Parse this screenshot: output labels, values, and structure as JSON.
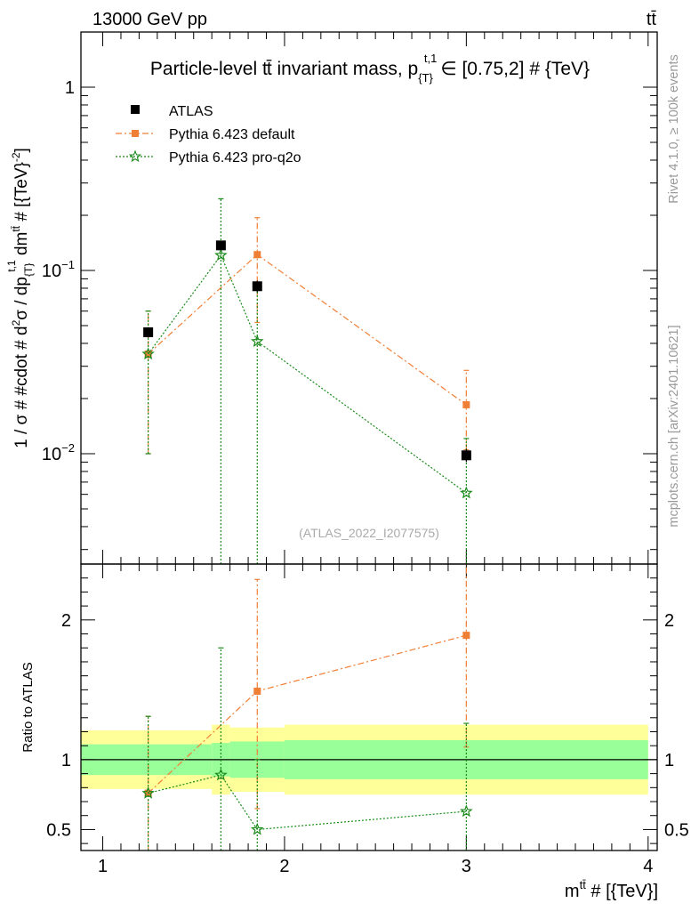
{
  "header": {
    "energy_label": "13000 GeV pp",
    "process_label": "tt̄",
    "side_label_top": "Rivet 4.1.0, ≥ 100k events",
    "side_label_bottom": "mcplots.cern.ch [arXiv:2401.10621]",
    "analysis_id": "(ATLAS_2022_I2077575)"
  },
  "chart_data": {
    "type": "scatter",
    "title": "Particle-level tt̄ invariant mass, p_{T}^{t,1} ∈ [0.75,2] # {TeV}",
    "title_parts": {
      "main": "Particle-level t",
      "tbar": "t̄",
      "mid": " invariant mass, p",
      "sub": "{T}",
      "sup": "t,1",
      "range": "∈ [0.75,2] # {TeV}"
    },
    "xlabel": "m^{tt̄} # [{TeV}]",
    "xlabel_parts": {
      "base": "m",
      "sup": "tt̄",
      "rest": " # [{TeV}]"
    },
    "ylabel": "1 / σ # #cdot # d²σ / dp_{T}^{t,1} dm^{tt̄} # [{TeV}^{-2}]",
    "ylabel_parts": {
      "a": "1 / σ # #cdot # d",
      "a_sup": "2",
      "b": "σ / dp",
      "b_sub": "{T}",
      "b_sup": "t,1",
      "c": " dm",
      "c_sup": "tt̄",
      "d": " # [{TeV}",
      "d_sup": "-2",
      "e": "]"
    },
    "ratio_ylabel": "Ratio to ATLAS",
    "xlim": [
      0.88,
      4.05
    ],
    "ylim": [
      0.0025,
      2.0
    ],
    "ratio_ylim": [
      0.35,
      2.4
    ],
    "xticks_major": [
      1,
      2,
      3,
      4
    ],
    "xtick_labels": [
      "1",
      "2",
      "3",
      "4"
    ],
    "yticks_major": [
      0.01,
      0.1,
      1
    ],
    "ytick_labels": [
      {
        "base": "10",
        "sup": "−2"
      },
      {
        "base": "10",
        "sup": "−1"
      },
      {
        "base": "1",
        "sup": ""
      }
    ],
    "ratio_yticks": [
      0.5,
      1,
      2
    ],
    "ratio_ytick_labels": [
      "0.5",
      "1",
      "2"
    ],
    "legend_position": "top-left",
    "series": [
      {
        "name": "ATLAS",
        "color": "#000000",
        "marker": "square",
        "x": [
          1.25,
          1.65,
          1.85,
          3.0
        ],
        "xerr_low": [
          0.25,
          0.05,
          0.15,
          0.5
        ],
        "xerr_high": [
          0.25,
          0.05,
          0.15,
          0.5
        ],
        "y": [
          0.046,
          0.137,
          0.082,
          0.0098
        ],
        "yerr_low": [
          0.003,
          0.008,
          0.006,
          0.0008
        ],
        "yerr_high": [
          0.003,
          0.008,
          0.006,
          0.0008
        ]
      },
      {
        "name": "Pythia 6.423 default",
        "color": "#f07f36",
        "marker": "square",
        "linestyle": "dashdot",
        "x": [
          1.25,
          1.85,
          3.0
        ],
        "y": [
          0.035,
          0.122,
          0.0185
        ],
        "yerr_low": [
          0.025,
          0.07,
          0.008
        ],
        "yerr_high": [
          0.025,
          0.072,
          0.01
        ]
      },
      {
        "name": "Pythia 6.423 pro-q2o",
        "color": "#1a8a1a",
        "marker": "star",
        "linestyle": "dotted",
        "x": [
          1.25,
          1.65,
          1.85,
          3.0
        ],
        "y": [
          0.035,
          0.121,
          0.041,
          0.0061
        ],
        "yerr_low": [
          0.025,
          0.12,
          0.04,
          0.006
        ],
        "yerr_high": [
          0.025,
          0.125,
          0.04,
          0.006
        ]
      }
    ],
    "ratio_series": [
      {
        "name": "Pythia 6.423 default",
        "color": "#f07f36",
        "marker": "square",
        "linestyle": "dashdot",
        "x": [
          1.25,
          1.85,
          3.0
        ],
        "y": [
          0.76,
          1.49,
          1.89
        ],
        "yerr_low": [
          0.45,
          0.84,
          0.8
        ],
        "yerr_high": [
          0.55,
          0.8,
          0.9
        ]
      },
      {
        "name": "Pythia 6.423 pro-q2o",
        "color": "#1a8a1a",
        "marker": "star",
        "linestyle": "dotted",
        "x": [
          1.25,
          1.65,
          1.85,
          3.0
        ],
        "y": [
          0.76,
          0.89,
          0.5,
          0.63
        ],
        "yerr_low": [
          0.45,
          0.89,
          0.5,
          0.63
        ],
        "yerr_high": [
          0.55,
          0.91,
          0.5,
          0.63
        ]
      }
    ],
    "ratio_bands": [
      {
        "x0": 0.88,
        "x1": 1.6,
        "inner": [
          0.89,
          1.11
        ],
        "outer": [
          0.79,
          1.21
        ]
      },
      {
        "x0": 1.6,
        "x1": 1.7,
        "inner": [
          0.88,
          1.12
        ],
        "outer": [
          0.75,
          1.25
        ]
      },
      {
        "x0": 1.7,
        "x1": 2.0,
        "inner": [
          0.87,
          1.13
        ],
        "outer": [
          0.77,
          1.23
        ]
      },
      {
        "x0": 2.0,
        "x1": 4.0,
        "inner": [
          0.86,
          1.14
        ],
        "outer": [
          0.75,
          1.25
        ]
      }
    ],
    "band_colors": {
      "inner": "#99ff99",
      "outer": "#ffff99"
    }
  }
}
